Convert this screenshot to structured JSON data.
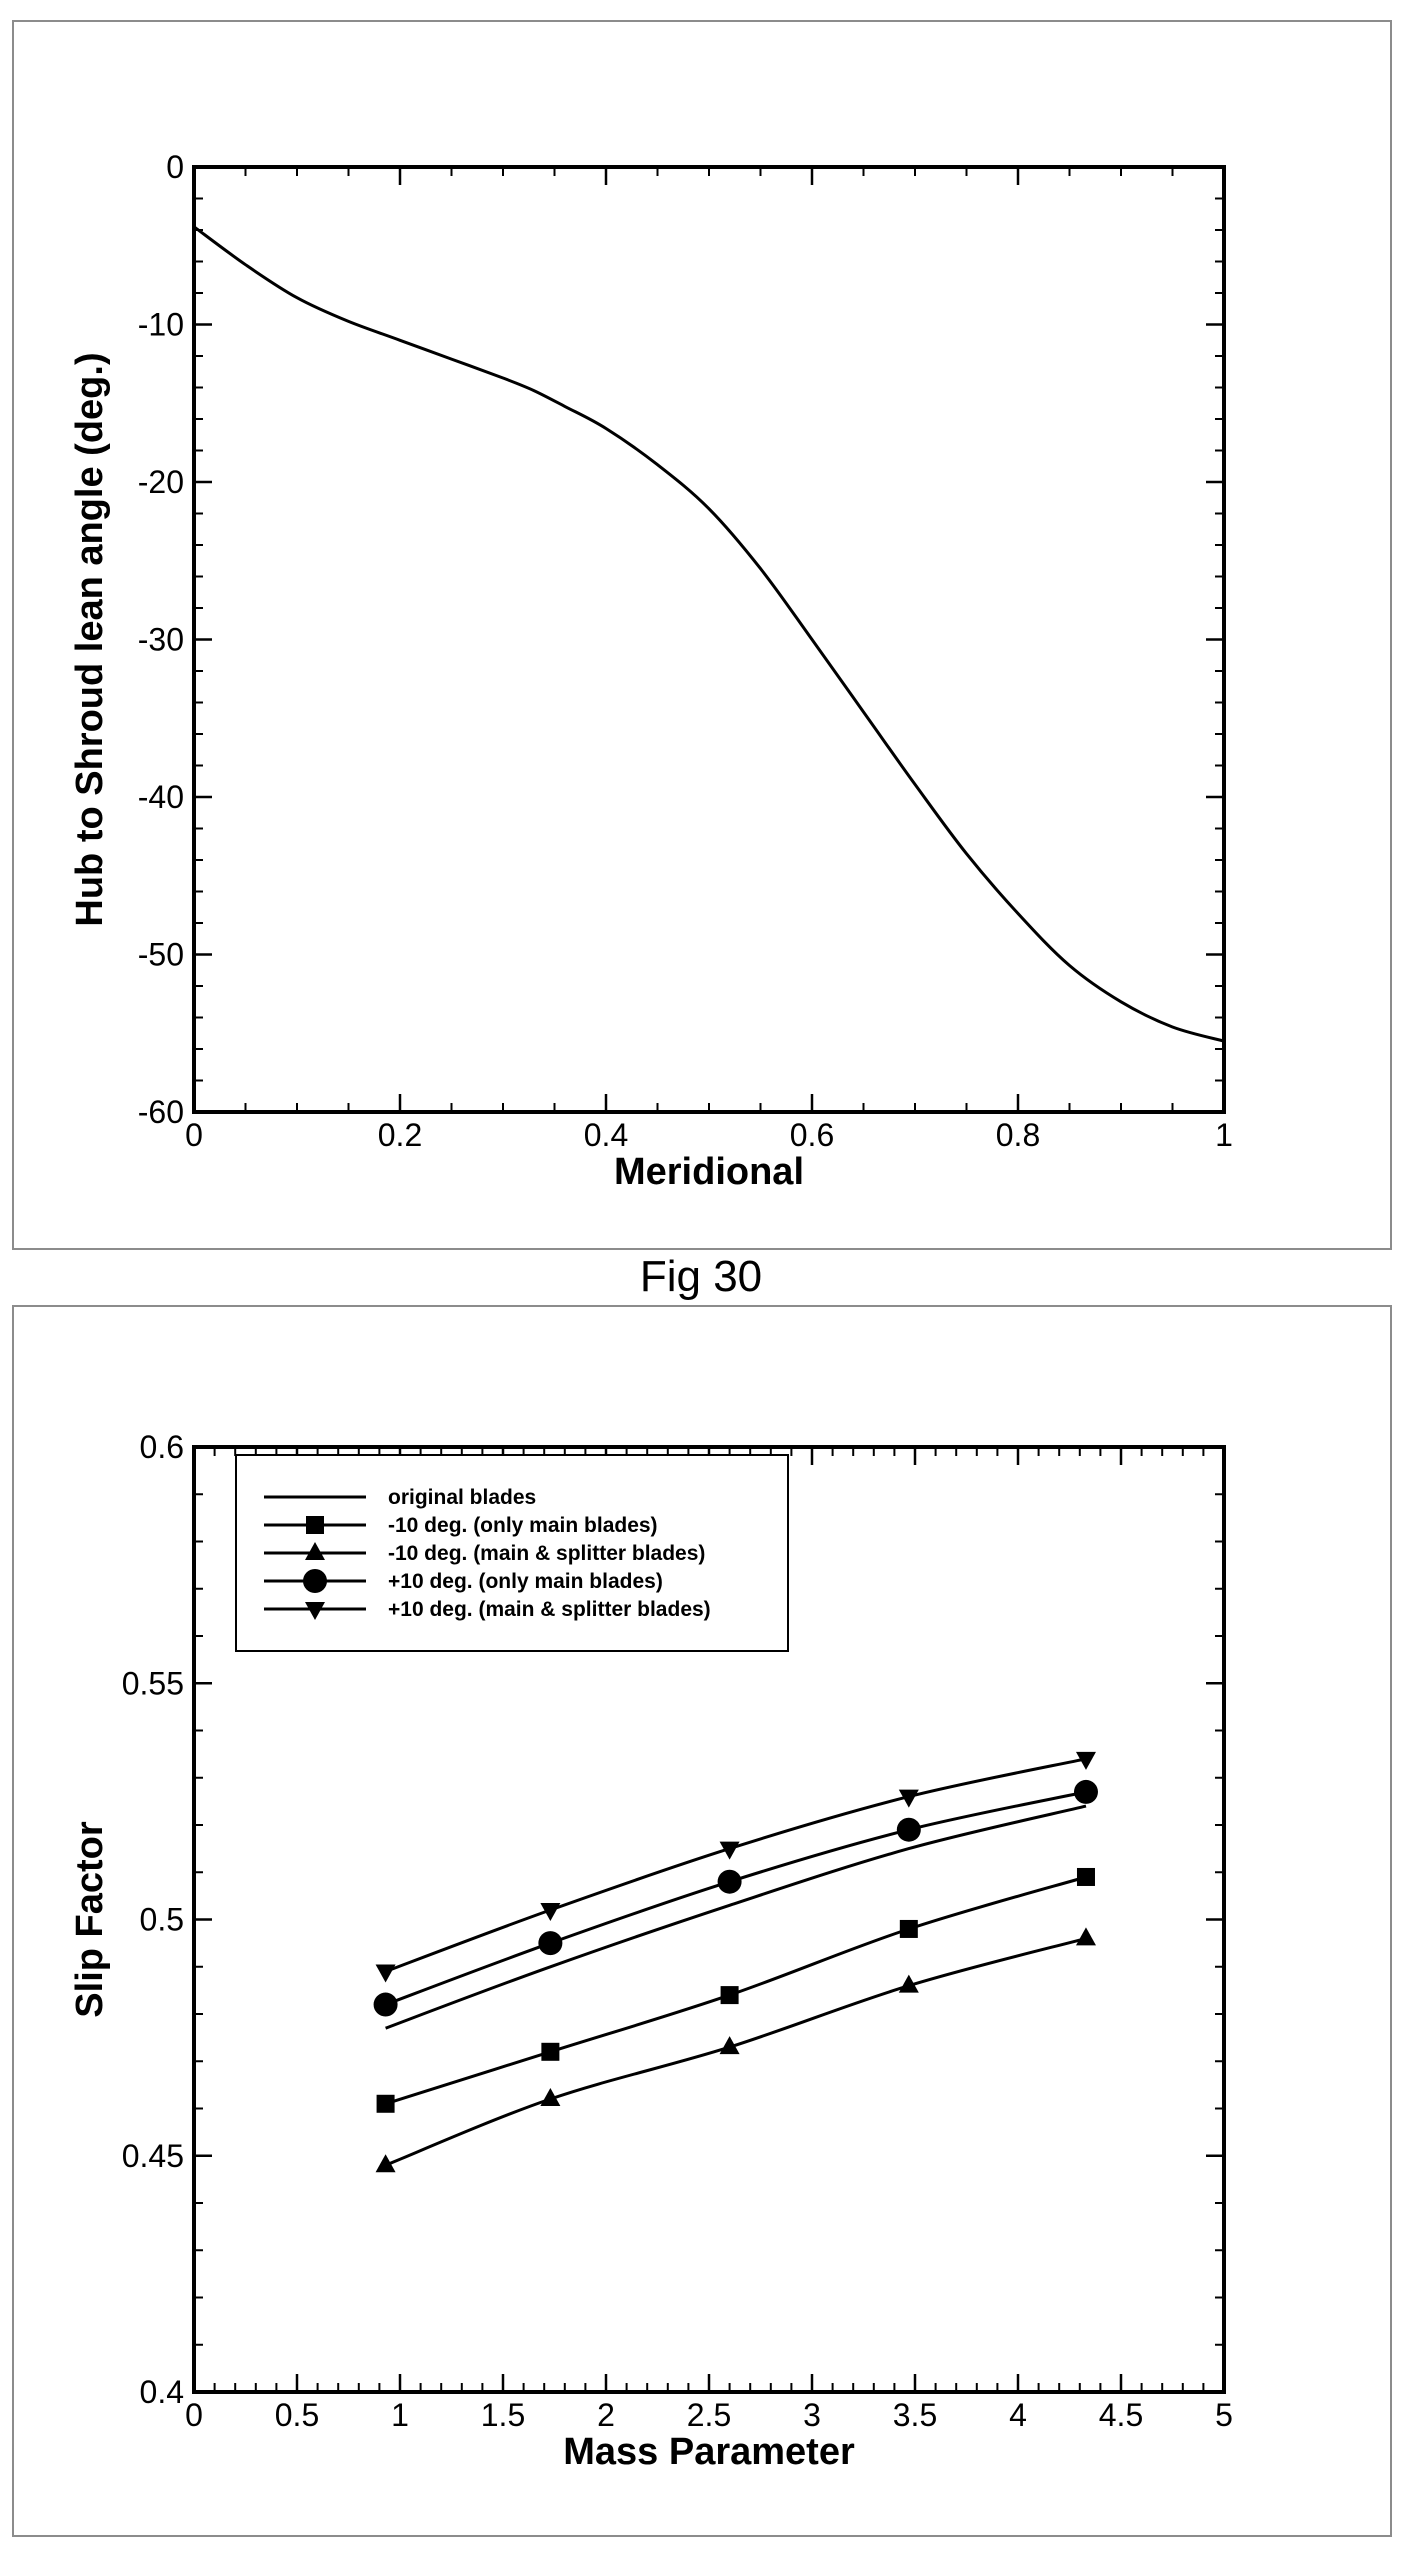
{
  "figure_caption": "Fig 30",
  "chart_data": [
    {
      "type": "line",
      "title": "",
      "xlabel": "Meridional",
      "ylabel": "Hub to Shroud lean angle (deg.)",
      "xlim": [
        0,
        1
      ],
      "ylim": [
        -60,
        0
      ],
      "x_ticks": [
        "0",
        "0.2",
        "0.4",
        "0.6",
        "0.8",
        "1"
      ],
      "y_ticks": [
        "0",
        "-10",
        "-20",
        "-30",
        "-40",
        "-50",
        "-60"
      ],
      "grid": false,
      "series": [
        {
          "name": "lean angle",
          "x": [
            0,
            0.05,
            0.1,
            0.15,
            0.2,
            0.25,
            0.3,
            0.33,
            0.36,
            0.4,
            0.45,
            0.5,
            0.55,
            0.6,
            0.65,
            0.7,
            0.75,
            0.8,
            0.85,
            0.9,
            0.95,
            1.0
          ],
          "y": [
            -3.8,
            -6.2,
            -8.3,
            -9.8,
            -11.0,
            -12.2,
            -13.4,
            -14.2,
            -15.2,
            -16.6,
            -18.9,
            -21.7,
            -25.5,
            -30.0,
            -34.6,
            -39.2,
            -43.6,
            -47.4,
            -50.7,
            -53.0,
            -54.6,
            -55.5
          ]
        }
      ]
    },
    {
      "type": "line",
      "title": "",
      "xlabel": "Mass Parameter",
      "ylabel": "Slip Factor",
      "xlim": [
        0,
        5
      ],
      "ylim": [
        0.4,
        0.6
      ],
      "x_ticks": [
        "0",
        "0.5",
        "1",
        "1.5",
        "2",
        "2.5",
        "3",
        "3.5",
        "4",
        "4.5",
        "5"
      ],
      "y_ticks": [
        "0.4",
        "0.45",
        "0.5",
        "0.55",
        "0.6"
      ],
      "grid": false,
      "legend_position": "top-left",
      "series": [
        {
          "name": "original blades",
          "marker": "none",
          "x": [
            0.93,
            1.73,
            2.6,
            3.47,
            4.33
          ],
          "y": [
            0.477,
            0.49,
            0.503,
            0.515,
            0.524
          ]
        },
        {
          "name": "-10 deg. (only main blades)",
          "marker": "square",
          "x": [
            0.93,
            1.73,
            2.6,
            3.47,
            4.33
          ],
          "y": [
            0.461,
            0.472,
            0.484,
            0.498,
            0.509
          ]
        },
        {
          "name": "-10 deg. (main & splitter blades)",
          "marker": "triangle-up",
          "x": [
            0.93,
            1.73,
            2.6,
            3.47,
            4.33
          ],
          "y": [
            0.448,
            0.462,
            0.473,
            0.486,
            0.496
          ]
        },
        {
          "name": "+10 deg. (only main blades)",
          "marker": "circle",
          "x": [
            0.93,
            1.73,
            2.6,
            3.47,
            4.33
          ],
          "y": [
            0.482,
            0.495,
            0.508,
            0.519,
            0.527
          ]
        },
        {
          "name": "+10 deg. (main & splitter blades)",
          "marker": "triangle-down",
          "x": [
            0.93,
            1.73,
            2.6,
            3.47,
            4.33
          ],
          "y": [
            0.489,
            0.502,
            0.515,
            0.526,
            0.534
          ]
        }
      ]
    }
  ]
}
